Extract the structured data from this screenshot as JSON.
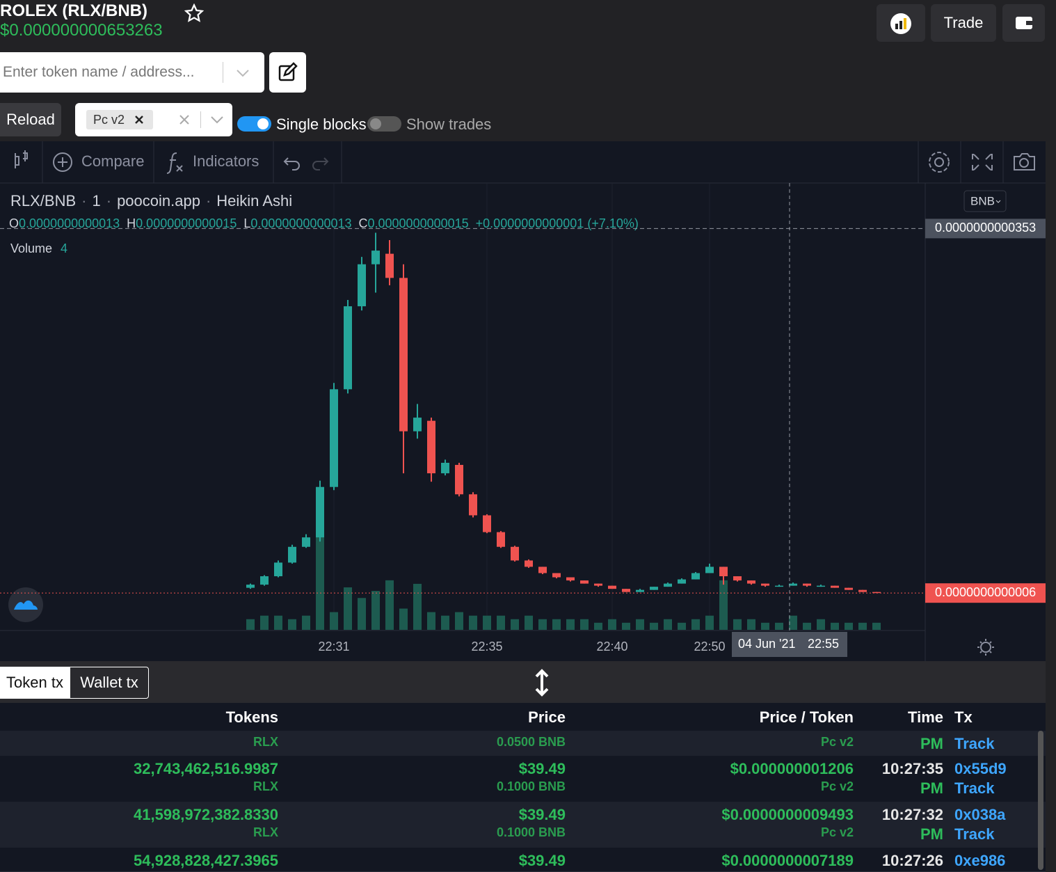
{
  "header": {
    "title": "ROLEX (RLX/BNB)",
    "price": "$0.000000000653263",
    "trade_button": "Trade"
  },
  "search": {
    "placeholder": "Enter token name / address..."
  },
  "controls": {
    "reload": "Reload",
    "exchange": "Pc v2",
    "single_blocks": "Single blocks",
    "show_trades": "Show trades"
  },
  "toolbar": {
    "compare": "Compare",
    "indicators": "Indicators"
  },
  "chart_data": {
    "type": "candlestick",
    "symbol": "RLX/BNB",
    "interval": "1",
    "source": "poocoin.app",
    "style": "Heikin Ashi",
    "currency": "BNB",
    "legend": {
      "open_label": "O",
      "open": "0.0000000000013",
      "high_label": "H",
      "high": "0.0000000000015",
      "low_label": "L",
      "low": "0.0000000000013",
      "close_label": "C",
      "close": "0.0000000000015",
      "change": "+0.0000000000001 (+7.10%)"
    },
    "volume_label": "Volume",
    "volume_value": 4,
    "up_color": "#26a69a",
    "down_color": "#ef5350",
    "volume_color": "#1d5b50",
    "categories": [
      null,
      null,
      null,
      null,
      null,
      null,
      "22:31",
      null,
      null,
      null,
      null,
      null,
      null,
      null,
      null,
      null,
      null,
      "22:35",
      null,
      null,
      null,
      null,
      null,
      null,
      null,
      null,
      "22:40",
      null,
      null,
      null,
      null,
      null,
      null,
      "22:50",
      null,
      null,
      null,
      null,
      null,
      null,
      null,
      null,
      null,
      null,
      null,
      null
    ],
    "open": [
      1.1e-12,
      1.4e-12,
      2.2e-12,
      3.5e-12,
      5e-12,
      5.9e-12,
      1.07e-11,
      2e-11,
      2.79e-11,
      3.19e-11,
      3.29e-11,
      3.06e-11,
      1.6e-11,
      1.7e-11,
      1.2e-11,
      1.28e-11,
      1e-11,
      8e-12,
      6.4e-12,
      5e-12,
      3.7e-12,
      3.1e-12,
      2.5e-12,
      2.1e-12,
      1.8e-12,
      1.5e-12,
      1.3e-12,
      1e-12,
      7e-13,
      9e-13,
      1.2e-12,
      1.5e-12,
      1.9e-12,
      2.5e-12,
      3.1e-12,
      2.2e-12,
      1.8e-12,
      1.5e-12,
      1.2e-12,
      1.3e-12,
      1.5e-12,
      1.2e-12,
      1.3e-12,
      1.1e-12,
      9e-13,
      7e-13
    ],
    "high": [
      1.5e-12,
      2.3e-12,
      3.7e-12,
      5.2e-12,
      6.2e-12,
      1.13e-11,
      2.06e-11,
      2.85e-11,
      3.26e-11,
      3.49e-11,
      3.42e-11,
      3.19e-11,
      1.86e-11,
      1.73e-11,
      1.33e-11,
      1.3e-11,
      1.02e-11,
      8.1e-12,
      6.5e-12,
      5.1e-12,
      3.8e-12,
      3.1e-12,
      2.5e-12,
      2.1e-12,
      1.8e-12,
      1.5e-12,
      1.3e-12,
      1e-12,
      1e-12,
      1.2e-12,
      1.6e-12,
      2e-12,
      2.6e-12,
      3.4e-12,
      3.1e-12,
      2.2e-12,
      1.8e-12,
      1.5e-12,
      1.4e-12,
      1.6e-12,
      1.5e-12,
      1.4e-12,
      1.3e-12,
      1.1e-12,
      9e-13,
      7e-13
    ],
    "low": [
      1e-12,
      1.3e-12,
      2.1e-12,
      3.4e-12,
      4.9e-12,
      5.5e-12,
      1.04e-11,
      1.96e-11,
      2.75e-11,
      2.92e-11,
      2.99e-11,
      1.2e-11,
      1.53e-11,
      1.12e-11,
      1.18e-11,
      9.8e-12,
      7.8e-12,
      6.3e-12,
      4.9e-12,
      3.6e-12,
      3e-12,
      2.4e-12,
      2e-12,
      1.7e-12,
      1.5e-12,
      1.2e-12,
      1e-12,
      7e-13,
      7e-13,
      9e-13,
      1.2e-12,
      1.5e-12,
      1.9e-12,
      2.5e-12,
      1.4e-12,
      1.7e-12,
      1.4e-12,
      1.2e-12,
      1.2e-12,
      1.3e-12,
      1.2e-12,
      1.2e-12,
      1.1e-12,
      9e-13,
      7e-13,
      6e-13
    ],
    "close": [
      1.4e-12,
      2.2e-12,
      3.5e-12,
      5e-12,
      5.9e-12,
      1.07e-11,
      2e-11,
      2.79e-11,
      3.19e-11,
      3.32e-11,
      3.06e-11,
      1.6e-11,
      1.73e-11,
      1.2e-11,
      1.3e-11,
      1e-11,
      8e-12,
      6.4e-12,
      5e-12,
      3.7e-12,
      3.1e-12,
      2.5e-12,
      2.1e-12,
      1.8e-12,
      1.5e-12,
      1.3e-12,
      1e-12,
      7e-13,
      9e-13,
      1.2e-12,
      1.5e-12,
      1.9e-12,
      2.5e-12,
      3.1e-12,
      2.2e-12,
      1.8e-12,
      1.5e-12,
      1.3e-12,
      1.3e-12,
      1.5e-12,
      1.3e-12,
      1.3e-12,
      1.1e-12,
      9e-13,
      7e-13,
      6e-13
    ],
    "volumes": [
      3,
      4,
      4,
      3,
      4,
      27,
      5,
      12,
      9,
      11,
      14,
      6,
      13,
      5,
      4,
      5,
      4,
      4,
      4,
      3,
      4,
      3,
      3,
      3,
      3,
      2,
      3,
      2,
      3,
      2,
      3,
      2,
      3,
      4,
      14,
      3,
      3,
      2,
      2,
      4,
      2,
      3,
      2,
      2,
      2,
      2
    ],
    "volume_ylim": [
      0,
      60
    ],
    "ylim": [
      -2.9e-12,
      3.95e-11
    ],
    "crosshair_price": {
      "value": 3.53e-11,
      "label": "0.0000000000353"
    },
    "last_price": {
      "value": 6e-13,
      "label": "0.0000000000006"
    },
    "crosshair_date": "04 Jun '21",
    "crosshair_time": "22:55"
  },
  "tabs": [
    "Token tx",
    "Wallet tx"
  ],
  "table": {
    "columns": [
      "Tokens",
      "Price",
      "Price / Token",
      "Time",
      "Tx"
    ],
    "rows": [
      {
        "sub": [
          "RLX",
          "0.0500 BNB",
          "Pc v2",
          "PM",
          "Track"
        ]
      },
      {
        "main": [
          "32,743,462,516.9987",
          "$39.49",
          "$0.000000001206",
          "10:27:35",
          "0x55d9"
        ],
        "sub": [
          "RLX",
          "0.1000 BNB",
          "Pc v2",
          "PM",
          "Track"
        ]
      },
      {
        "main": [
          "41,598,972,382.8330",
          "$39.49",
          "$0.0000000009493",
          "10:27:32",
          "0x038a"
        ],
        "sub": [
          "RLX",
          "0.1000 BNB",
          "Pc v2",
          "PM",
          "Track"
        ]
      },
      {
        "main": [
          "54,928,828,427.3965",
          "$39.49",
          "$0.0000000007189",
          "10:27:26",
          "0xe986"
        ]
      }
    ]
  }
}
